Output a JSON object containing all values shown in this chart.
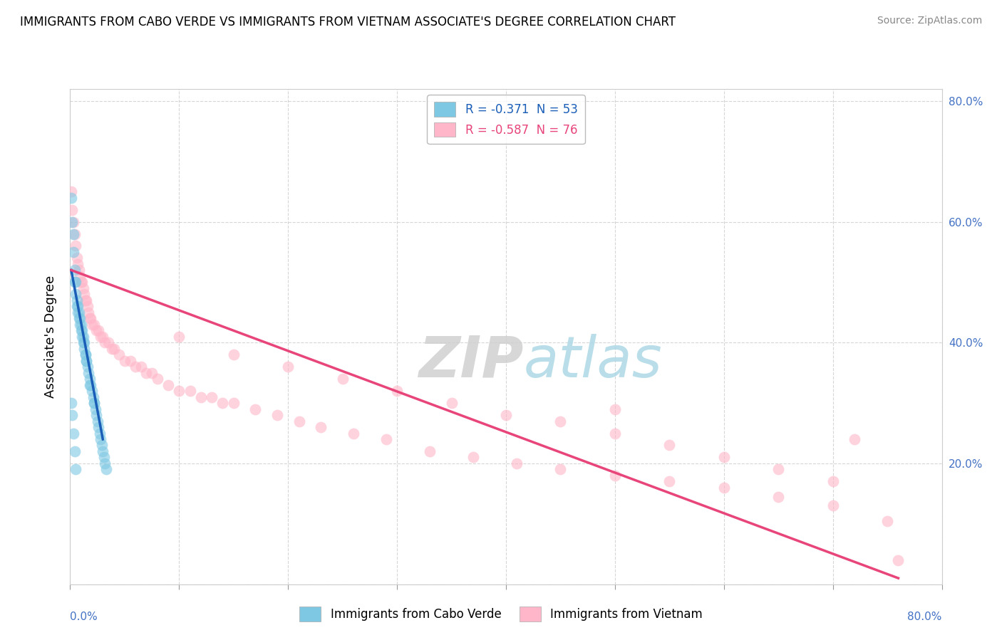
{
  "title": "IMMIGRANTS FROM CABO VERDE VS IMMIGRANTS FROM VIETNAM ASSOCIATE'S DEGREE CORRELATION CHART",
  "source": "Source: ZipAtlas.com",
  "ylabel": "Associate's Degree",
  "legend1_label": "R = -0.371  N = 53",
  "legend2_label": "R = -0.587  N = 76",
  "cabo_verde_color": "#7ec8e3",
  "vietnam_color": "#ffb6c8",
  "cabo_verde_line_color": "#1a5eb8",
  "vietnam_line_color": "#e8457a",
  "cabo_verde_scatter": [
    [
      0.001,
      0.64
    ],
    [
      0.002,
      0.6
    ],
    [
      0.003,
      0.58
    ],
    [
      0.003,
      0.55
    ],
    [
      0.004,
      0.52
    ],
    [
      0.004,
      0.5
    ],
    [
      0.005,
      0.5
    ],
    [
      0.005,
      0.48
    ],
    [
      0.006,
      0.47
    ],
    [
      0.006,
      0.46
    ],
    [
      0.007,
      0.46
    ],
    [
      0.007,
      0.45
    ],
    [
      0.008,
      0.45
    ],
    [
      0.008,
      0.44
    ],
    [
      0.009,
      0.44
    ],
    [
      0.009,
      0.43
    ],
    [
      0.01,
      0.43
    ],
    [
      0.01,
      0.42
    ],
    [
      0.011,
      0.42
    ],
    [
      0.011,
      0.41
    ],
    [
      0.012,
      0.41
    ],
    [
      0.012,
      0.4
    ],
    [
      0.013,
      0.4
    ],
    [
      0.013,
      0.39
    ],
    [
      0.014,
      0.38
    ],
    [
      0.014,
      0.38
    ],
    [
      0.015,
      0.37
    ],
    [
      0.015,
      0.37
    ],
    [
      0.016,
      0.36
    ],
    [
      0.017,
      0.35
    ],
    [
      0.018,
      0.34
    ],
    [
      0.018,
      0.33
    ],
    [
      0.019,
      0.33
    ],
    [
      0.02,
      0.32
    ],
    [
      0.021,
      0.31
    ],
    [
      0.022,
      0.3
    ],
    [
      0.022,
      0.3
    ],
    [
      0.023,
      0.29
    ],
    [
      0.024,
      0.28
    ],
    [
      0.025,
      0.27
    ],
    [
      0.026,
      0.26
    ],
    [
      0.027,
      0.25
    ],
    [
      0.028,
      0.24
    ],
    [
      0.029,
      0.23
    ],
    [
      0.03,
      0.22
    ],
    [
      0.031,
      0.21
    ],
    [
      0.032,
      0.2
    ],
    [
      0.033,
      0.19
    ],
    [
      0.001,
      0.3
    ],
    [
      0.002,
      0.28
    ],
    [
      0.003,
      0.25
    ],
    [
      0.004,
      0.22
    ],
    [
      0.005,
      0.19
    ]
  ],
  "vietnam_scatter": [
    [
      0.001,
      0.65
    ],
    [
      0.002,
      0.62
    ],
    [
      0.003,
      0.6
    ],
    [
      0.004,
      0.58
    ],
    [
      0.005,
      0.56
    ],
    [
      0.006,
      0.54
    ],
    [
      0.007,
      0.53
    ],
    [
      0.008,
      0.52
    ],
    [
      0.009,
      0.51
    ],
    [
      0.01,
      0.5
    ],
    [
      0.011,
      0.5
    ],
    [
      0.012,
      0.49
    ],
    [
      0.013,
      0.48
    ],
    [
      0.014,
      0.47
    ],
    [
      0.015,
      0.47
    ],
    [
      0.016,
      0.46
    ],
    [
      0.017,
      0.45
    ],
    [
      0.018,
      0.44
    ],
    [
      0.019,
      0.44
    ],
    [
      0.02,
      0.43
    ],
    [
      0.022,
      0.43
    ],
    [
      0.024,
      0.42
    ],
    [
      0.026,
      0.42
    ],
    [
      0.028,
      0.41
    ],
    [
      0.03,
      0.41
    ],
    [
      0.032,
      0.4
    ],
    [
      0.035,
      0.4
    ],
    [
      0.038,
      0.39
    ],
    [
      0.04,
      0.39
    ],
    [
      0.045,
      0.38
    ],
    [
      0.05,
      0.37
    ],
    [
      0.055,
      0.37
    ],
    [
      0.06,
      0.36
    ],
    [
      0.065,
      0.36
    ],
    [
      0.07,
      0.35
    ],
    [
      0.075,
      0.35
    ],
    [
      0.08,
      0.34
    ],
    [
      0.09,
      0.33
    ],
    [
      0.1,
      0.32
    ],
    [
      0.11,
      0.32
    ],
    [
      0.12,
      0.31
    ],
    [
      0.13,
      0.31
    ],
    [
      0.14,
      0.3
    ],
    [
      0.15,
      0.3
    ],
    [
      0.17,
      0.29
    ],
    [
      0.19,
      0.28
    ],
    [
      0.21,
      0.27
    ],
    [
      0.23,
      0.26
    ],
    [
      0.26,
      0.25
    ],
    [
      0.29,
      0.24
    ],
    [
      0.33,
      0.22
    ],
    [
      0.37,
      0.21
    ],
    [
      0.41,
      0.2
    ],
    [
      0.45,
      0.19
    ],
    [
      0.5,
      0.18
    ],
    [
      0.55,
      0.17
    ],
    [
      0.6,
      0.16
    ],
    [
      0.65,
      0.145
    ],
    [
      0.7,
      0.13
    ],
    [
      0.72,
      0.24
    ],
    [
      0.1,
      0.41
    ],
    [
      0.15,
      0.38
    ],
    [
      0.2,
      0.36
    ],
    [
      0.25,
      0.34
    ],
    [
      0.3,
      0.32
    ],
    [
      0.35,
      0.3
    ],
    [
      0.4,
      0.28
    ],
    [
      0.45,
      0.27
    ],
    [
      0.5,
      0.25
    ],
    [
      0.55,
      0.23
    ],
    [
      0.6,
      0.21
    ],
    [
      0.65,
      0.19
    ],
    [
      0.7,
      0.17
    ],
    [
      0.75,
      0.105
    ],
    [
      0.76,
      0.04
    ],
    [
      0.5,
      0.29
    ]
  ],
  "xlim": [
    0.0,
    0.8
  ],
  "ylim": [
    0.0,
    0.82
  ],
  "xticks": [
    0.0,
    0.1,
    0.2,
    0.3,
    0.4,
    0.5,
    0.6,
    0.7,
    0.8
  ],
  "yticks": [
    0.0,
    0.2,
    0.4,
    0.6,
    0.8
  ],
  "cabo_line_x": [
    0.001,
    0.03
  ],
  "cabo_line_y": [
    0.52,
    0.24
  ],
  "viet_line_x": [
    0.001,
    0.76
  ],
  "viet_line_y": [
    0.52,
    0.01
  ]
}
